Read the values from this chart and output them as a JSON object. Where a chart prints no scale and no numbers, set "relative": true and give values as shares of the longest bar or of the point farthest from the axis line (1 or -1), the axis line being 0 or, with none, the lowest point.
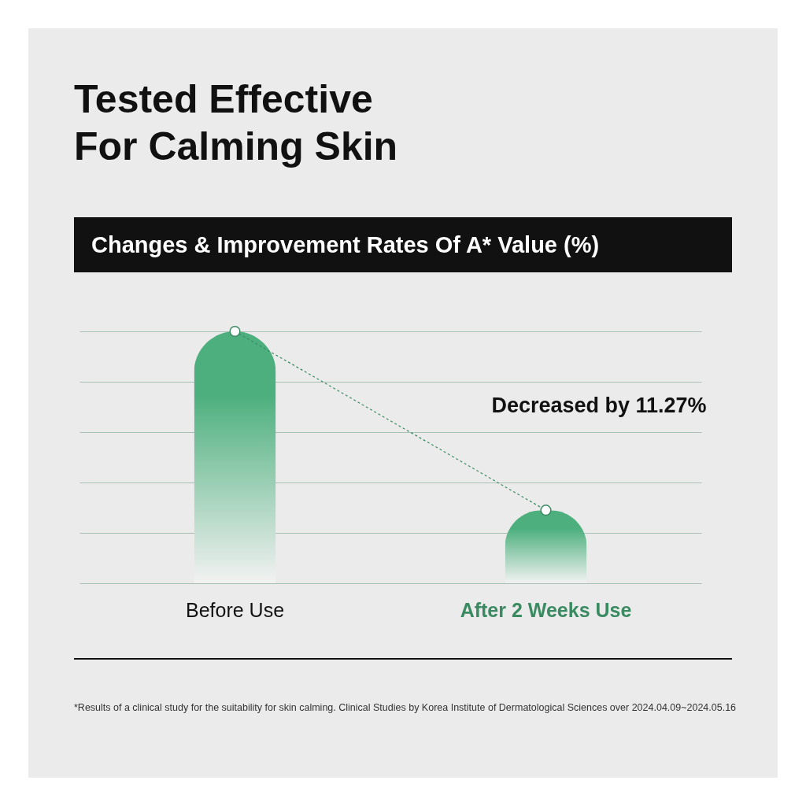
{
  "chart_data": {
    "type": "bar",
    "title": "Tested Effective For Calming Skin",
    "subtitle": "Changes & Improvement Rates Of A* Value (%)",
    "relative": true,
    "categories": [
      "Before Use",
      "After 2 Weeks Use"
    ],
    "series": [
      {
        "color": "#4caf7d",
        "values": [
          1,
          0.29
        ]
      },
      {
        "type": "line",
        "color": "#3a8a62",
        "values": [
          1,
          0.29
        ]
      }
    ],
    "marker": "circle",
    "line_style": "dashed",
    "grid": "y",
    "annotations": [
      "Decreased by 11.27%",
      "*Results of a clinical study for the suitability for skin calming. Clinical Studies by Korea Institute of Dermatological Sciences over 2024.04.09~2024.05.16"
    ]
  }
}
